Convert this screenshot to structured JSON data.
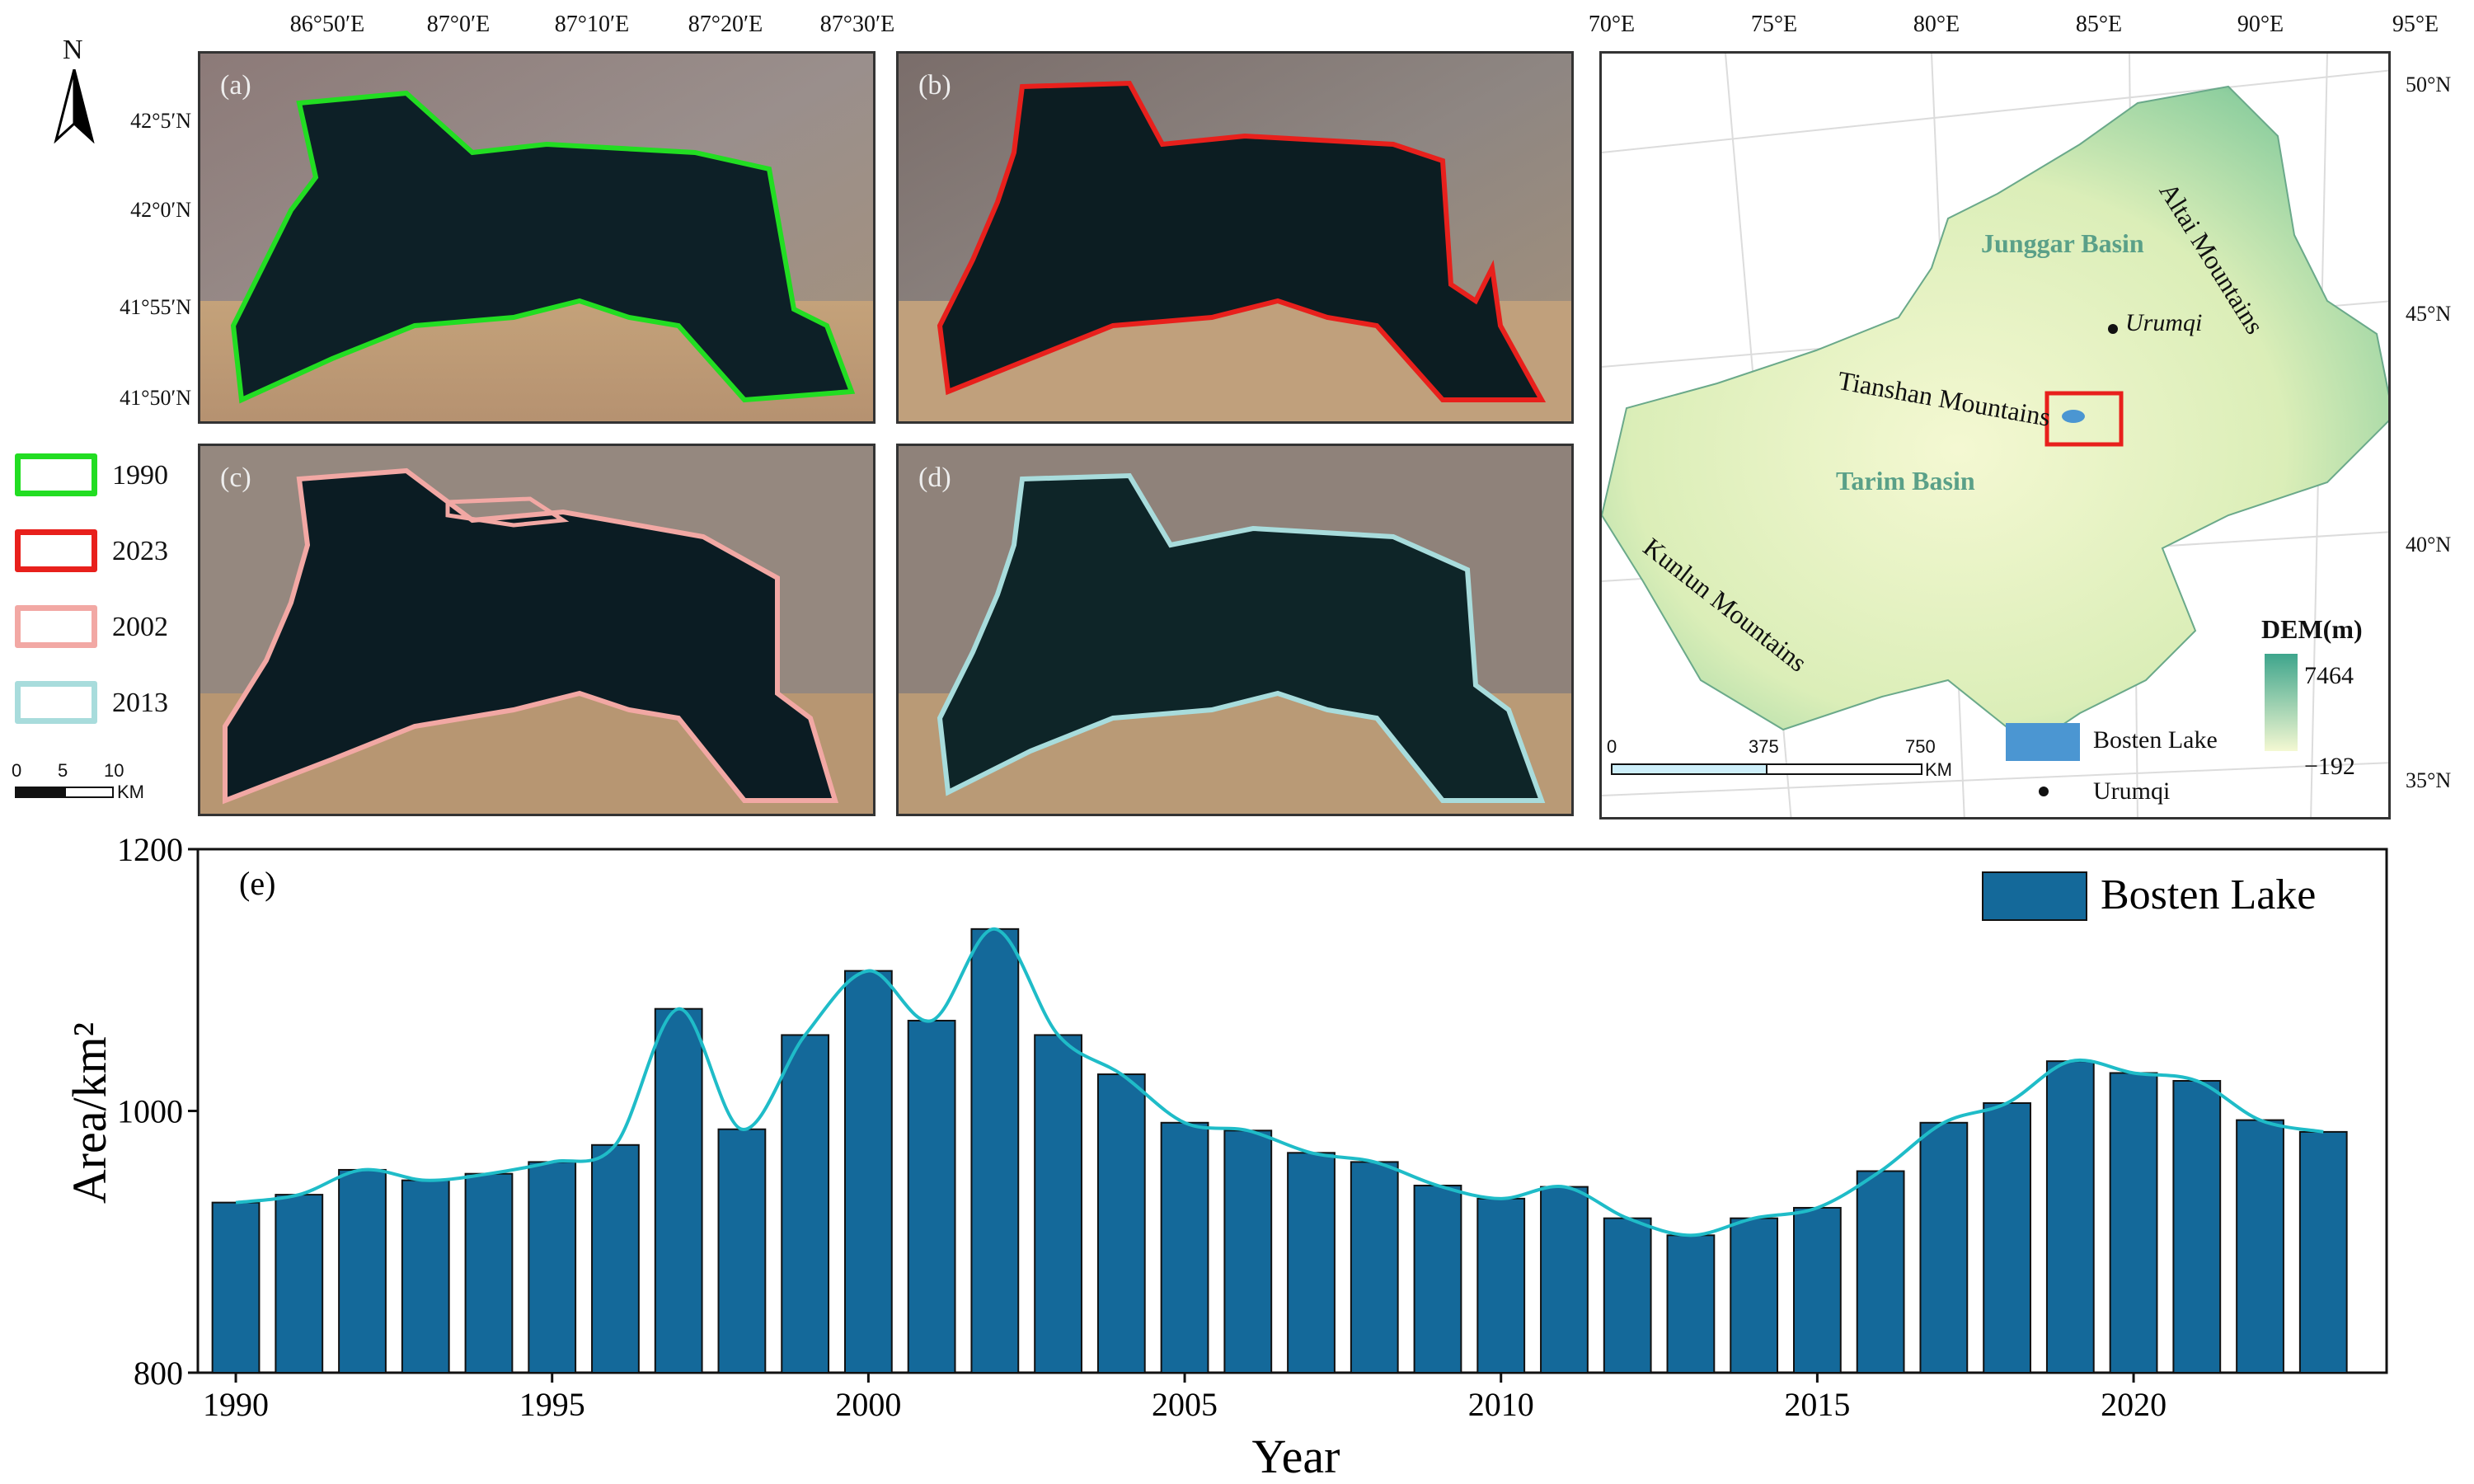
{
  "panel_labels": [
    "(a)",
    "(b)",
    "(c)",
    "(d)",
    "(e)"
  ],
  "top_lon_labels": [
    "86°50′E",
    "87°0′E",
    "87°10′E",
    "87°20′E",
    "87°30′E"
  ],
  "left_lat_labels": [
    "42°5′N",
    "42°0′N",
    "41°55′N",
    "41°50′N"
  ],
  "north_arrow": "N",
  "legend": [
    {
      "year": "1990",
      "color": "#22dd22"
    },
    {
      "year": "2023",
      "color": "#e8201c"
    },
    {
      "year": "2002",
      "color": "#f2a8a4"
    },
    {
      "year": "2013",
      "color": "#a8dcdc"
    }
  ],
  "scalebar": {
    "ticks": [
      "0",
      "5",
      "10"
    ],
    "unit": "KM"
  },
  "map": {
    "top_lon_labels": [
      "70°E",
      "75°E",
      "80°E",
      "85°E",
      "90°E",
      "95°E"
    ],
    "right_lat_labels": [
      "50°N",
      "45°N",
      "40°N",
      "35°N"
    ],
    "labels": {
      "altai": "Altai Mountains",
      "junggar": "Junggar Basin",
      "urumqi_label": "Urumqi",
      "tianshan": "Tianshan Mountains",
      "tarim": "Tarim Basin",
      "kunlun": "Kunlun Mountains",
      "dem_title": "DEM(m)",
      "dem_max": "7464",
      "dem_min": "−192"
    },
    "legend": {
      "lake": "Bosten Lake",
      "city": "Urumqi"
    },
    "scalebar": {
      "ticks": [
        "0",
        "375",
        "750"
      ],
      "unit": "KM"
    },
    "colors": {
      "dem_high": "#3ea58c",
      "dem_low": "#f4f8d2",
      "lake": "#4b96d2",
      "highlight": "#e8201c"
    }
  },
  "chart_data": {
    "type": "bar",
    "panel_label": "(e)",
    "xlabel": "Year",
    "ylabel": "Area/km²",
    "ylim": [
      800,
      1200
    ],
    "yticks": [
      "800",
      "1000",
      "1200"
    ],
    "xticks": [
      "1990",
      "1995",
      "2000",
      "2005",
      "2010",
      "2015",
      "2020"
    ],
    "x": [
      1990,
      1991,
      1992,
      1993,
      1994,
      1995,
      1996,
      1997,
      1998,
      1999,
      2000,
      2001,
      2002,
      2003,
      2004,
      2005,
      2006,
      2007,
      2008,
      2009,
      2010,
      2011,
      2012,
      2013,
      2014,
      2015,
      2016,
      2017,
      2018,
      2019,
      2020,
      2021,
      2022,
      2023
    ],
    "series": [
      {
        "name": "Bosten Lake",
        "values": [
          930,
          936,
          955,
          947,
          952,
          961,
          974,
          1078,
          986,
          1058,
          1107,
          1069,
          1139,
          1058,
          1028,
          991,
          985,
          968,
          961,
          943,
          933,
          942,
          918,
          905,
          918,
          926,
          954,
          991,
          1006,
          1038,
          1029,
          1023,
          993,
          984
        ]
      }
    ],
    "colors": {
      "bar": "#14699a",
      "line": "#1fbcc8"
    },
    "legend_position": "top-right"
  }
}
